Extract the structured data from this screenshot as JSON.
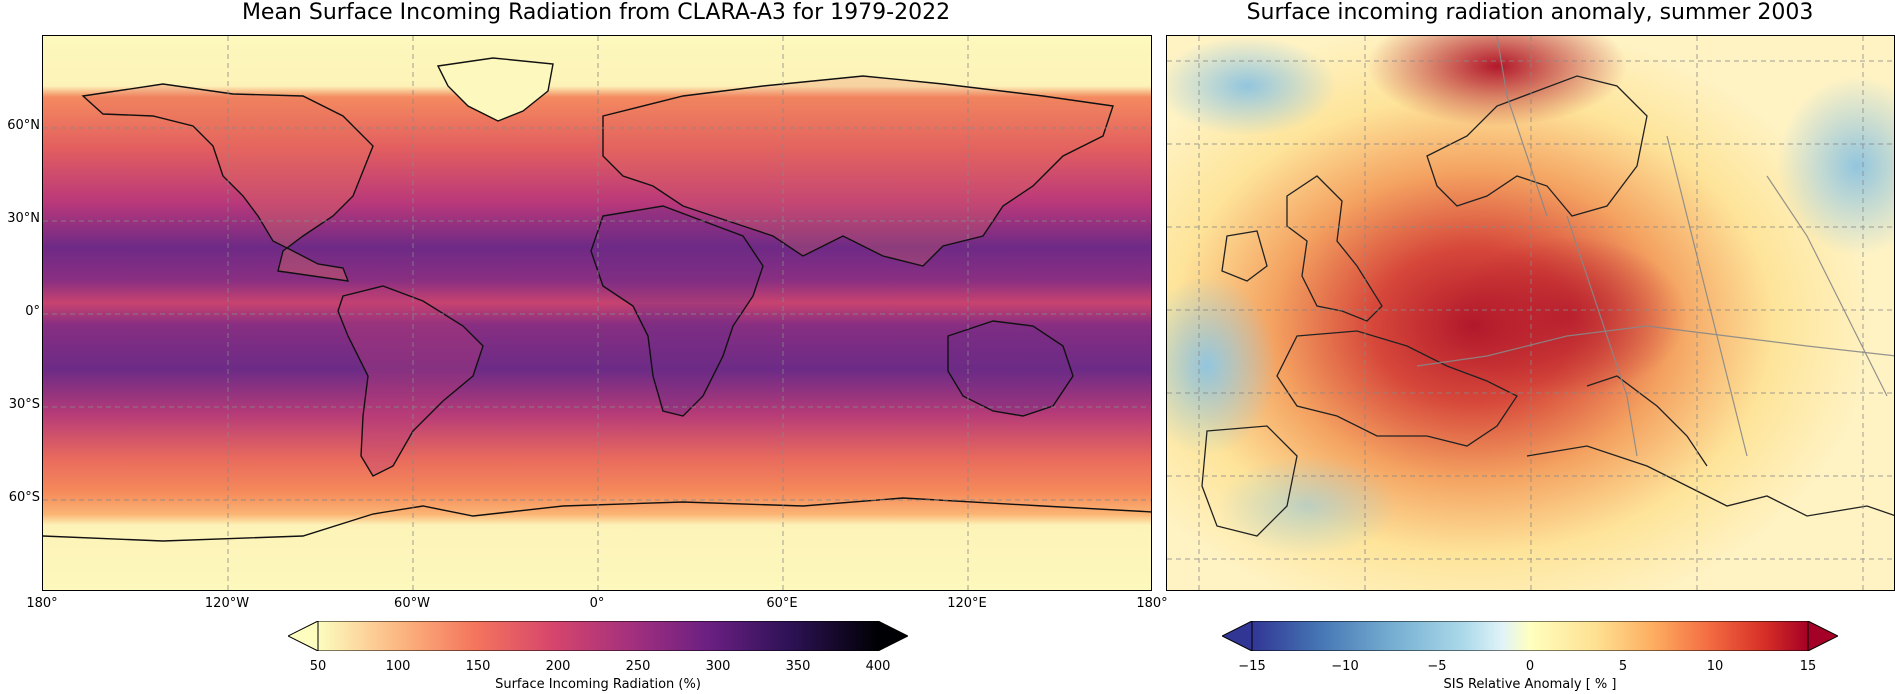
{
  "left_map": {
    "title": "Mean Surface Incoming Radiation from CLARA-A3 for 1979-2022",
    "lat_labels": [
      "60°N",
      "30°N",
      "0°",
      "30°S",
      "60°S"
    ],
    "lon_labels": [
      "180°",
      "120°W",
      "60°W",
      "0°",
      "60°E",
      "120°E",
      "180°"
    ],
    "colorbar": {
      "ticks": [
        "50",
        "100",
        "150",
        "200",
        "250",
        "300",
        "350",
        "400"
      ],
      "label": "Surface Incoming Radiation (%)",
      "colormap": "spectral-magma",
      "min": 50,
      "max": 400,
      "extend": "both"
    }
  },
  "right_map": {
    "title": "Surface incoming radiation anomaly, summer 2003",
    "colorbar": {
      "ticks": [
        "−15",
        "−10",
        "−5",
        "0",
        "5",
        "10",
        "15"
      ],
      "label": "SIS Relative Anomaly [ % ]",
      "colormap": "RdYlBu_r",
      "min": -15,
      "max": 15,
      "extend": "both"
    }
  }
}
